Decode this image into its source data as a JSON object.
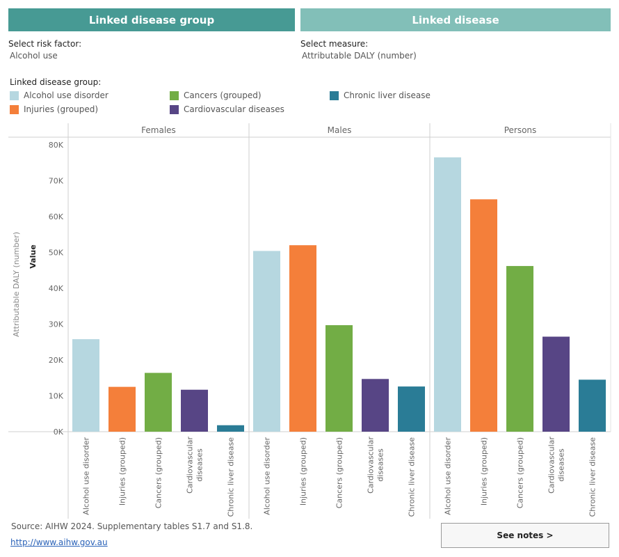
{
  "tabs": {
    "active": "Linked disease group",
    "inactive": "Linked disease"
  },
  "controls": {
    "risk_factor_label": "Select risk factor:",
    "risk_factor_value": "Alcohol use",
    "measure_label": "Select measure:",
    "measure_value": "Attributable DALY (number)"
  },
  "legend": {
    "title": "Linked disease group:",
    "items": [
      {
        "label": "Alcohol use disorder",
        "color": "#b6d7e0"
      },
      {
        "label": "Cancers (grouped)",
        "color": "#72ad45"
      },
      {
        "label": "Chronic liver disease",
        "color": "#2a7c96"
      },
      {
        "label": "Injuries (grouped)",
        "color": "#f47f3a"
      },
      {
        "label": "Cardiovascular diseases",
        "color": "#574585"
      }
    ]
  },
  "chart_data": {
    "type": "bar",
    "ylabel": "Attributable DALY (number)",
    "ylabel2": "Value",
    "ylim": [
      0,
      80000
    ],
    "yticks": [
      0,
      10000,
      20000,
      30000,
      40000,
      50000,
      60000,
      70000,
      80000
    ],
    "ytick_labels": [
      "0K",
      "10K",
      "20K",
      "30K",
      "40K",
      "50K",
      "60K",
      "70K",
      "80K"
    ],
    "panels": [
      "Females",
      "Males",
      "Persons"
    ],
    "categories": [
      "Alcohol use disorder",
      "Injuries (grouped)",
      "Cancers (grouped)",
      "Cardiovascular diseases",
      "Chronic liver disease"
    ],
    "category_lines": [
      [
        "Alcohol use disorder"
      ],
      [
        "Injuries (grouped)"
      ],
      [
        "Cancers (grouped)"
      ],
      [
        "Cardiovascular",
        "diseases"
      ],
      [
        "Chronic liver disease"
      ]
    ],
    "colors": [
      "#b6d7e0",
      "#f47f3a",
      "#72ad45",
      "#574585",
      "#2a7c96"
    ],
    "values": {
      "Females": [
        25800,
        12500,
        16400,
        11700,
        1800
      ],
      "Males": [
        50400,
        52000,
        29700,
        14700,
        12600
      ],
      "Persons": [
        76500,
        64800,
        46200,
        26500,
        14500
      ]
    }
  },
  "footer": {
    "source": "Source: AIHW 2024. Supplementary tables S1.7 and S1.8.",
    "link": "http://www.aihw.gov.au",
    "notes_button": "See notes >"
  }
}
